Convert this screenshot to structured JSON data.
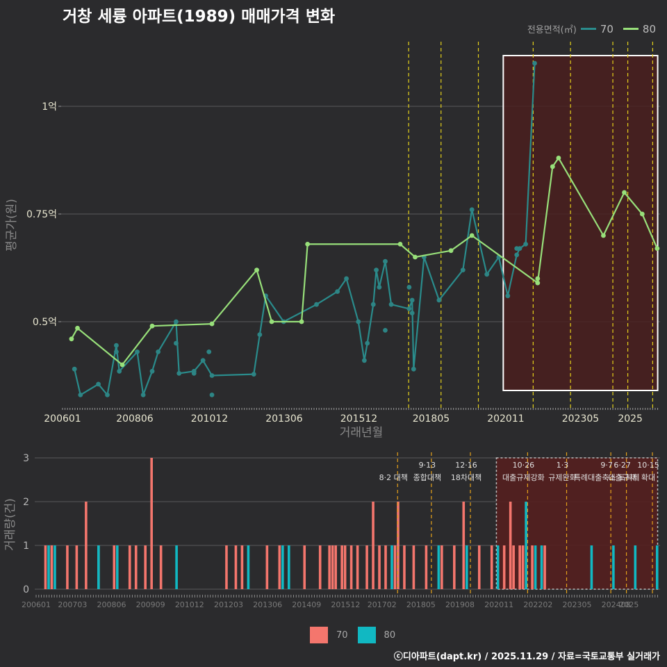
{
  "title": "거창 세륭 아파트(1989) 매매가격 변화",
  "footer": "ⓒ디아파트(dapt.kr) / 2025.11.29 / 자료=국토교통부 실거래가",
  "colors": {
    "s70": "#2a8c8c",
    "s70_dot": "#2d8585",
    "s80": "#98e07a",
    "bar70": "#f4766d",
    "bar80": "#11b8c2",
    "vline": "#e6d21b",
    "highlight": "#4a1f1f"
  },
  "chart_data": [
    {
      "type": "line",
      "title": "거창 세륭 아파트(1989) 매매가격 변화",
      "xlabel": "거래년월",
      "ylabel": "평균가(원)",
      "x_ticks": [
        "200601",
        "200806",
        "201012",
        "201306",
        "201512",
        "201805",
        "202011",
        "202305",
        "2025"
      ],
      "y_ticks": [
        "0.5억",
        "0.75억",
        "1억"
      ],
      "y_tick_values": [
        5000,
        7500,
        10000
      ],
      "ylim": [
        3000,
        11500
      ],
      "legend_title": "전용면적(㎡)",
      "highlight_range": [
        "2020.10",
        "2025.12"
      ],
      "policy_dates": [
        "2017.08",
        "2018.09",
        "2019.12",
        "2021.10",
        "2023.01",
        "2024.06",
        "2024.12",
        "2025.10"
      ],
      "series": [
        {
          "name": "70",
          "line": [
            [
              2006.4,
              3900
            ],
            [
              2006.6,
              3300
            ],
            [
              2007.2,
              3550
            ],
            [
              2007.5,
              3300
            ],
            [
              2007.8,
              4450
            ],
            [
              2007.9,
              3850
            ],
            [
              2008.5,
              4300
            ],
            [
              2008.7,
              3300
            ],
            [
              2009.0,
              3850
            ],
            [
              2009.2,
              4300
            ],
            [
              2009.8,
              5000
            ],
            [
              2009.9,
              3800
            ],
            [
              2010.4,
              3850
            ],
            [
              2010.7,
              4100
            ],
            [
              2011.0,
              3750
            ],
            [
              2012.4,
              3780
            ],
            [
              2012.6,
              4700
            ],
            [
              2012.8,
              5600
            ],
            [
              2013.4,
              5000
            ],
            [
              2014.5,
              5400
            ],
            [
              2015.2,
              5700
            ],
            [
              2015.5,
              6000
            ],
            [
              2015.9,
              5000
            ],
            [
              2016.1,
              4100
            ],
            [
              2016.2,
              4500
            ],
            [
              2016.4,
              5400
            ],
            [
              2016.5,
              6200
            ],
            [
              2016.6,
              5800
            ],
            [
              2016.8,
              6400
            ],
            [
              2017.0,
              5400
            ],
            [
              2017.6,
              5300
            ],
            [
              2017.7,
              5500
            ],
            [
              2017.75,
              3900
            ],
            [
              2018.1,
              6500
            ],
            [
              2018.6,
              5500
            ],
            [
              2019.4,
              6200
            ],
            [
              2019.7,
              7600
            ],
            [
              2020.2,
              6100
            ],
            [
              2020.6,
              6500
            ],
            [
              2020.9,
              5600
            ],
            [
              2021.2,
              6550
            ],
            [
              2021.3,
              6700
            ],
            [
              2021.5,
              6800
            ],
            [
              2021.8,
              11000
            ]
          ],
          "points": [
            [
              2007.8,
              4300
            ],
            [
              2009.8,
              4500
            ],
            [
              2010.4,
              3800
            ],
            [
              2010.9,
              4300
            ],
            [
              2011.0,
              3300
            ],
            [
              2016.8,
              4800
            ],
            [
              2017.6,
              5800
            ],
            [
              2017.7,
              5200
            ],
            [
              2021.2,
              6700
            ]
          ]
        },
        {
          "name": "80",
          "line": [
            [
              2006.3,
              4600
            ],
            [
              2006.5,
              4850
            ],
            [
              2008.0,
              4000
            ],
            [
              2009.0,
              4900
            ],
            [
              2011.0,
              4950
            ],
            [
              2012.5,
              6200
            ],
            [
              2013.0,
              5000
            ],
            [
              2014.0,
              5000
            ],
            [
              2014.2,
              6800
            ],
            [
              2017.3,
              6800
            ],
            [
              2017.8,
              6500
            ],
            [
              2019.0,
              6650
            ],
            [
              2019.7,
              7000
            ],
            [
              2021.9,
              5900
            ],
            [
              2022.4,
              8600
            ],
            [
              2022.6,
              8800
            ],
            [
              2024.1,
              7000
            ],
            [
              2024.8,
              8000
            ],
            [
              2025.4,
              7500
            ],
            [
              2025.9,
              6700
            ]
          ],
          "points": [
            [
              2021.9,
              6000
            ]
          ]
        }
      ]
    },
    {
      "type": "bar",
      "ylabel": "거래량(건)",
      "y_ticks": [
        "0",
        "1",
        "2",
        "3"
      ],
      "ylim": [
        0,
        3
      ],
      "x_ticks": [
        "200601",
        "200703",
        "200806",
        "200909",
        "201012",
        "201203",
        "201306",
        "201409",
        "201512",
        "201702",
        "201805",
        "201908",
        "202011",
        "202202",
        "202305",
        "202408",
        "2025"
      ],
      "highlight_range": [
        "2020.10",
        "2025.12"
      ],
      "policy_annotations": [
        {
          "date": "2017.08",
          "row1": "",
          "row2": "8·2 대책"
        },
        {
          "date": "2018.09",
          "row1": "9·13",
          "row2": "종합대책"
        },
        {
          "date": "2019.12",
          "row1": "12·16",
          "row2": "18차대책"
        },
        {
          "date": "2021.10",
          "row1": "10·26",
          "row2": "대출규제강화"
        },
        {
          "date": "2023.01",
          "row1": "1·3",
          "row2": "규제완화"
        },
        {
          "date": "2024.06",
          "row1": "9·7",
          "row2": "특례대출축소 토허제"
        },
        {
          "date": "2024.12",
          "row1": "6·27",
          "row2": "대출규제"
        },
        {
          "date": "2025.10",
          "row1": "10·15",
          "row2": "확대"
        }
      ],
      "series": [
        {
          "name": "70",
          "bars": [
            [
              2006.3,
              1
            ],
            [
              2006.5,
              1
            ],
            [
              2007.0,
              1
            ],
            [
              2007.3,
              1
            ],
            [
              2007.6,
              2
            ],
            [
              2008.0,
              1
            ],
            [
              2008.5,
              1
            ],
            [
              2009.0,
              1
            ],
            [
              2009.2,
              1
            ],
            [
              2009.5,
              1
            ],
            [
              2009.7,
              3
            ],
            [
              2010.0,
              1
            ],
            [
              2012.1,
              1
            ],
            [
              2012.4,
              1
            ],
            [
              2012.6,
              1
            ],
            [
              2013.4,
              1
            ],
            [
              2013.8,
              1
            ],
            [
              2014.6,
              1
            ],
            [
              2015.1,
              1
            ],
            [
              2015.4,
              1
            ],
            [
              2015.5,
              1
            ],
            [
              2015.6,
              1
            ],
            [
              2015.8,
              1
            ],
            [
              2015.9,
              1
            ],
            [
              2016.1,
              1
            ],
            [
              2016.3,
              1
            ],
            [
              2016.6,
              1
            ],
            [
              2016.8,
              2
            ],
            [
              2017.0,
              1
            ],
            [
              2017.2,
              1
            ],
            [
              2017.5,
              1
            ],
            [
              2017.6,
              2
            ],
            [
              2017.8,
              1
            ],
            [
              2018.1,
              1
            ],
            [
              2018.5,
              1
            ],
            [
              2019.0,
              1
            ],
            [
              2019.4,
              1
            ],
            [
              2019.7,
              2
            ],
            [
              2020.2,
              1
            ],
            [
              2020.6,
              1
            ],
            [
              2021.0,
              1
            ],
            [
              2021.2,
              2
            ],
            [
              2021.3,
              1
            ],
            [
              2021.5,
              1
            ],
            [
              2021.6,
              1
            ],
            [
              2021.9,
              1
            ],
            [
              2022.3,
              1
            ]
          ]
        },
        {
          "name": "80",
          "bars": [
            [
              2006.4,
              1
            ],
            [
              2006.6,
              1
            ],
            [
              2008.0,
              1
            ],
            [
              2008.6,
              1
            ],
            [
              2010.5,
              1
            ],
            [
              2012.8,
              1
            ],
            [
              2013.9,
              1
            ],
            [
              2014.1,
              1
            ],
            [
              2017.4,
              1
            ],
            [
              2018.9,
              1
            ],
            [
              2019.8,
              1
            ],
            [
              2020.8,
              1
            ],
            [
              2021.7,
              2
            ],
            [
              2022.0,
              1
            ],
            [
              2022.2,
              1
            ],
            [
              2023.8,
              1
            ],
            [
              2024.5,
              1
            ],
            [
              2025.2,
              1
            ],
            [
              2025.9,
              1
            ]
          ]
        }
      ]
    }
  ]
}
